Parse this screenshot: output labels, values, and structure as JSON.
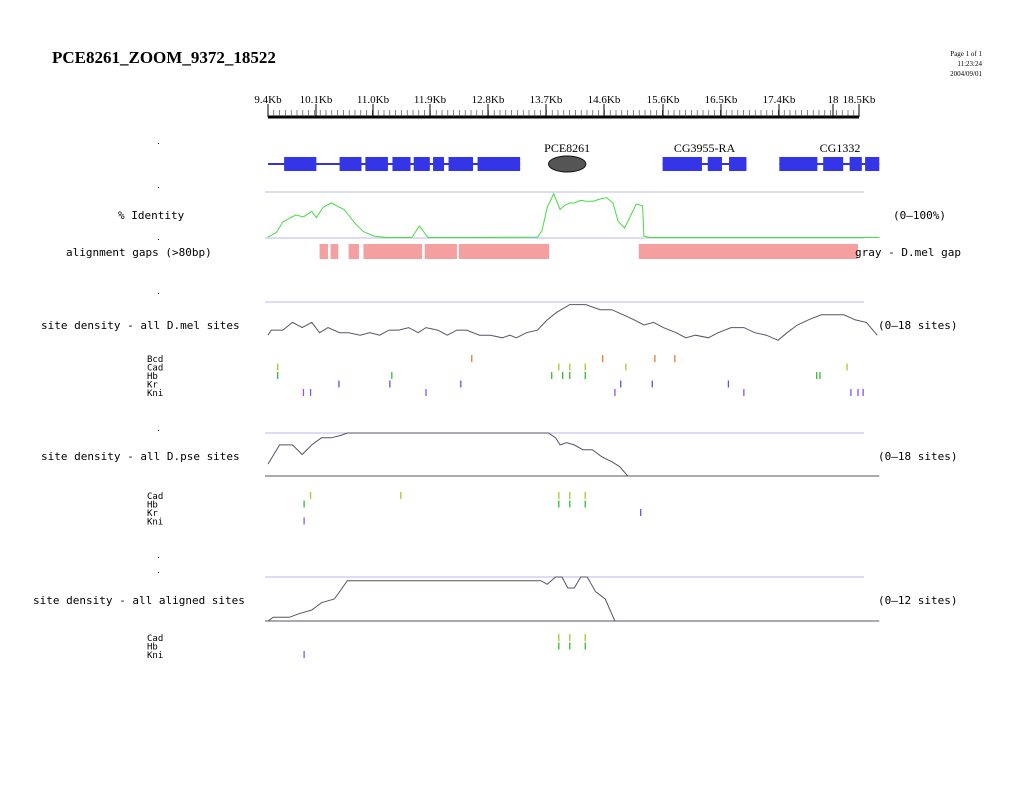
{
  "header": {
    "title": "PCE8261_ZOOM_9372_18522",
    "page": "Page 1 of 1",
    "time": "11:23:24",
    "date": "2004/09/01"
  },
  "ruler": {
    "ticks": [
      "9.4Kb",
      "10.1Kb",
      "11.0Kb",
      "11.9Kb",
      "12.8Kb",
      "13.7Kb",
      "14.6Kb",
      "15.6Kb",
      "16.5Kb",
      "17.4Kb",
      "18",
      "18.5Kb"
    ]
  },
  "genes": [
    {
      "label": "",
      "exons": [
        [
          9.37,
          9.62
        ],
        [
          9.62,
          10.12
        ],
        [
          10.48,
          10.82
        ],
        [
          10.88,
          11.23
        ],
        [
          11.3,
          11.58
        ],
        [
          11.63,
          11.88
        ],
        [
          11.93,
          12.1
        ],
        [
          12.17,
          12.55
        ],
        [
          12.62,
          13.28
        ]
      ]
    },
    {
      "label": "PCE8261",
      "region": [
        13.72,
        14.3
      ]
    },
    {
      "label": "CG3955-RA",
      "exons": [
        [
          15.49,
          16.1
        ],
        [
          16.19,
          16.41
        ],
        [
          16.52,
          16.79
        ]
      ]
    },
    {
      "label": "CG1332",
      "exons": [
        [
          17.3,
          17.89
        ],
        [
          17.98,
          18.29
        ],
        [
          18.39,
          18.58
        ],
        [
          18.63,
          18.85
        ]
      ]
    }
  ],
  "tracks": {
    "identity": {
      "label": "% Identity",
      "range": "(0–100%)",
      "color": "#44dd44"
    },
    "gaps": {
      "label": "alignment gaps (>80bp)",
      "right_label": "gray - D.mel gap",
      "color": "#f4a0a0",
      "blocks": [
        [
          10.17,
          10.3
        ],
        [
          10.34,
          10.46
        ],
        [
          10.62,
          10.78
        ],
        [
          10.85,
          11.76
        ],
        [
          11.8,
          12.3
        ],
        [
          12.33,
          13.73
        ],
        [
          15.12,
          18.85
        ]
      ]
    },
    "dmel": {
      "label": "site density - all D.mel sites",
      "range": "(0–18 sites)"
    },
    "dpse": {
      "label": "site density - all D.pse sites",
      "range": "(0–18 sites)"
    },
    "aligned": {
      "label": "site density - all aligned sites",
      "range": "(0–12 sites)"
    }
  },
  "sites": {
    "dmel": [
      {
        "name": "Bcd",
        "color": "#e87830",
        "pos": [
          12.53,
          14.56,
          15.37,
          15.68
        ]
      },
      {
        "name": "Cad",
        "color": "#a8c830",
        "pos": [
          9.52,
          13.88,
          14.05,
          14.29,
          14.92,
          18.35
        ]
      },
      {
        "name": "Hb",
        "color": "#33bb33",
        "pos": [
          9.52,
          11.29,
          13.77,
          13.94,
          14.05,
          14.29,
          17.88,
          17.93
        ]
      },
      {
        "name": "Kr",
        "color": "#5555ee",
        "pos": [
          10.47,
          11.26,
          12.36,
          14.84,
          15.33,
          16.51
        ]
      },
      {
        "name": "Kni",
        "color": "#8855ee",
        "pos": [
          9.92,
          10.03,
          11.82,
          14.75,
          16.75,
          18.41,
          18.52,
          18.6
        ]
      }
    ],
    "dpse": [
      {
        "name": "Cad",
        "color": "#a8c830",
        "pos": [
          10.03,
          11.43,
          13.88,
          14.05,
          14.29
        ]
      },
      {
        "name": "Hb",
        "color": "#33bb33",
        "pos": [
          9.93,
          13.88,
          14.05,
          14.29
        ]
      },
      {
        "name": "Kr",
        "color": "#5555ee",
        "pos": [
          15.15
        ]
      },
      {
        "name": "Kni",
        "color": "#8855ee",
        "pos": [
          9.93
        ]
      }
    ],
    "aligned": [
      {
        "name": "Cad",
        "color": "#a8c830",
        "pos": [
          13.88,
          14.05,
          14.29
        ]
      },
      {
        "name": "Hb",
        "color": "#33bb33",
        "pos": [
          13.88,
          14.05,
          14.29
        ]
      },
      {
        "name": "Kni",
        "color": "#8855ee",
        "pos": [
          9.93
        ]
      }
    ]
  },
  "density": {
    "identity": [
      [
        9.37,
        2
      ],
      [
        9.5,
        12
      ],
      [
        9.6,
        35
      ],
      [
        9.8,
        50
      ],
      [
        9.92,
        46
      ],
      [
        10.05,
        58
      ],
      [
        10.12,
        44
      ],
      [
        10.22,
        66
      ],
      [
        10.35,
        76
      ],
      [
        10.55,
        62
      ],
      [
        10.72,
        32
      ],
      [
        10.85,
        14
      ],
      [
        11.02,
        4
      ],
      [
        11.22,
        1
      ],
      [
        11.6,
        1
      ],
      [
        11.72,
        26
      ],
      [
        11.85,
        1
      ],
      [
        12.35,
        1
      ],
      [
        12.6,
        1
      ],
      [
        13.55,
        2
      ],
      [
        13.62,
        16
      ],
      [
        13.7,
        66
      ],
      [
        13.8,
        96
      ],
      [
        13.9,
        62
      ],
      [
        13.98,
        72
      ],
      [
        14.05,
        76
      ],
      [
        14.12,
        76
      ],
      [
        14.22,
        82
      ],
      [
        14.3,
        80
      ],
      [
        14.42,
        80
      ],
      [
        14.5,
        84
      ],
      [
        14.62,
        88
      ],
      [
        14.72,
        76
      ],
      [
        14.8,
        36
      ],
      [
        14.9,
        22
      ],
      [
        15.0,
        50
      ],
      [
        15.08,
        74
      ],
      [
        15.18,
        70
      ],
      [
        15.2,
        4
      ],
      [
        15.3,
        1
      ],
      [
        18.85,
        1
      ]
    ],
    "dmel": [
      [
        9.37,
        5
      ],
      [
        9.42,
        7
      ],
      [
        9.6,
        7
      ],
      [
        9.75,
        10
      ],
      [
        9.9,
        8
      ],
      [
        10.05,
        10
      ],
      [
        10.17,
        6
      ],
      [
        10.3,
        8
      ],
      [
        10.48,
        6
      ],
      [
        10.62,
        6
      ],
      [
        10.8,
        5
      ],
      [
        10.95,
        6
      ],
      [
        11.1,
        5
      ],
      [
        11.25,
        7
      ],
      [
        11.4,
        7
      ],
      [
        11.55,
        8
      ],
      [
        11.7,
        6
      ],
      [
        11.82,
        8
      ],
      [
        12.0,
        7
      ],
      [
        12.15,
        5
      ],
      [
        12.3,
        7
      ],
      [
        12.45,
        7
      ],
      [
        12.65,
        5
      ],
      [
        12.82,
        5
      ],
      [
        13.0,
        4
      ],
      [
        13.12,
        5
      ],
      [
        13.22,
        4
      ],
      [
        13.38,
        6
      ],
      [
        13.55,
        7
      ],
      [
        13.7,
        11
      ],
      [
        13.85,
        14
      ],
      [
        14.05,
        17
      ],
      [
        14.3,
        17
      ],
      [
        14.52,
        15
      ],
      [
        14.7,
        15
      ],
      [
        14.88,
        13
      ],
      [
        15.05,
        11
      ],
      [
        15.2,
        9
      ],
      [
        15.35,
        10
      ],
      [
        15.5,
        8
      ],
      [
        15.7,
        6
      ],
      [
        15.85,
        4
      ],
      [
        16.0,
        5
      ],
      [
        16.2,
        4
      ],
      [
        16.35,
        6
      ],
      [
        16.55,
        8
      ],
      [
        16.75,
        8
      ],
      [
        16.92,
        6
      ],
      [
        17.1,
        5
      ],
      [
        17.28,
        3
      ],
      [
        17.42,
        6
      ],
      [
        17.58,
        9
      ],
      [
        17.75,
        11
      ],
      [
        17.95,
        13
      ],
      [
        18.12,
        13
      ],
      [
        18.3,
        13
      ],
      [
        18.48,
        11
      ],
      [
        18.65,
        10
      ],
      [
        18.75,
        7
      ],
      [
        18.82,
        5
      ]
    ],
    "dpse": [
      [
        9.37,
        5
      ],
      [
        9.55,
        13
      ],
      [
        9.75,
        13
      ],
      [
        9.9,
        9
      ],
      [
        10.05,
        13
      ],
      [
        10.2,
        16
      ],
      [
        10.35,
        16
      ],
      [
        10.5,
        17
      ],
      [
        10.6,
        18
      ],
      [
        10.75,
        18
      ],
      [
        11.0,
        18
      ],
      [
        11.8,
        18
      ],
      [
        12.5,
        18
      ],
      [
        13.0,
        18
      ],
      [
        13.72,
        18
      ],
      [
        13.83,
        16
      ],
      [
        13.9,
        13
      ],
      [
        14.0,
        14
      ],
      [
        14.12,
        13
      ],
      [
        14.25,
        11
      ],
      [
        14.4,
        11
      ],
      [
        14.55,
        8
      ],
      [
        14.7,
        6
      ],
      [
        14.82,
        4
      ],
      [
        14.95,
        0
      ],
      [
        15.1,
        0
      ],
      [
        18.85,
        0
      ]
    ],
    "aligned": [
      [
        9.37,
        0
      ],
      [
        9.45,
        1
      ],
      [
        9.7,
        1
      ],
      [
        9.85,
        2
      ],
      [
        10.05,
        3
      ],
      [
        10.2,
        5
      ],
      [
        10.4,
        6
      ],
      [
        10.6,
        11
      ],
      [
        10.75,
        11
      ],
      [
        11.5,
        11
      ],
      [
        12.5,
        11
      ],
      [
        13.3,
        11
      ],
      [
        13.6,
        11
      ],
      [
        13.7,
        10
      ],
      [
        13.83,
        12
      ],
      [
        13.93,
        12
      ],
      [
        14.02,
        9
      ],
      [
        14.12,
        9
      ],
      [
        14.22,
        12
      ],
      [
        14.32,
        12
      ],
      [
        14.45,
        8
      ],
      [
        14.6,
        6
      ],
      [
        14.75,
        0
      ],
      [
        18.85,
        0
      ]
    ]
  }
}
